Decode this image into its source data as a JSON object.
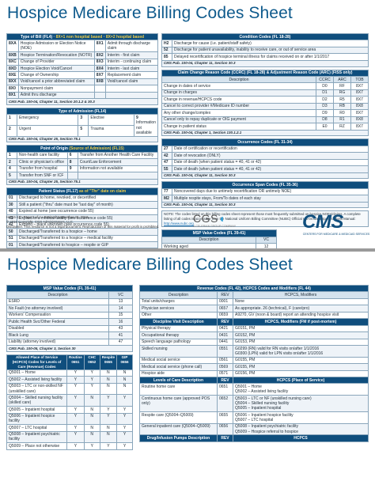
{
  "title": "Hospice Medicare Billing Codes Sheet",
  "p1": {
    "tob": {
      "head_a": "Type of Bill (FL4)",
      "head_b": "8X=1 non hospital based",
      "head_c": "8X=2 hospital based",
      "rows": [
        [
          "8XA",
          "Hospice Admission or Election Notice (NOE)",
          "8X1",
          "Admit through discharge claim"
        ],
        [
          "8XB",
          "Hospice Termination/Revocation (NOTR)",
          "8X2",
          "Interim - first claim"
        ],
        [
          "8XC",
          "Change of Provider",
          "8X3",
          "Interim - continuing claim"
        ],
        [
          "8XD",
          "Hospice Election Void/Cancel",
          "8X4",
          "Interim - last claim"
        ],
        [
          "8XE",
          "Change of Ownership",
          "8X7",
          "Replacement claim"
        ],
        [
          "8XX",
          "Void/cancel a prior abbreviated claim",
          "8X8",
          "Void/cancel claim"
        ],
        [
          "8X0",
          "Nonpayment claim",
          "",
          ""
        ],
        [
          "8X1",
          "Admit thru discharge",
          "",
          ""
        ]
      ],
      "ref": "CMS Pub. 100-04, Chapter 11, Section 20.1.2 & 30.3"
    },
    "toa": {
      "head": "Type of Admission (FL14)",
      "rows": [
        [
          "1",
          "Emergency",
          "3",
          "Elective"
        ],
        [
          "2",
          "Urgent",
          "5",
          "Trauma"
        ]
      ],
      "extra": [
        "9",
        "Information not available"
      ],
      "ref": "CMS Pub. 100-04, Chapter 25, Section 75.1"
    },
    "poo": {
      "head": "Point of Origin",
      "head_b": "(Source of Admission) (FL15)",
      "rows": [
        [
          "1",
          "Non-health care facility",
          "6",
          "Transfer from Another Health Care Facility"
        ],
        [
          "2",
          "Clinic or physician's office",
          "8",
          "Court/Law Enforcement"
        ],
        [
          "4",
          "Transfer from hospital",
          "9",
          "Information not available"
        ],
        [
          "5",
          "Transfer from SNF or ICF",
          "",
          ""
        ]
      ],
      "ref": "CMS Pub. 100-04, Chapter 25, Section 75.1"
    },
    "ps": {
      "head": "Patient Status (FL17)",
      "head_b": "as of \"Thr\" date on claim",
      "rows": [
        [
          "01",
          "Discharged to home, revoked, or decertified"
        ],
        [
          "30",
          "Still a patient (\"thru\" date must be \"last day\" of month)"
        ],
        [
          "40",
          "Expired at home (see occurrence code 55)"
        ],
        [
          "41",
          "Expired in a medical facility (see occurrence code 55)"
        ],
        [
          "42",
          "Expired – place unknown (see occurrence code 55)"
        ],
        [
          "50",
          "Discharged/Transferred to a hospice – home"
        ],
        [
          "51",
          "Discharged/Transferred to a hospice – medical facility"
        ],
        [
          "01",
          "Discharged/Transferred to hospice – respite or GIP"
        ]
      ],
      "ref": "CMS Pub. 100-04, Chapter 11, Section 30.3"
    },
    "website": "Website Reference -",
    "website_a": "CMS Pub. 100-04:",
    "website_link": "http://www.cms.gov/Regulations-and-Guidance/Guidance/Manuals/Internet-Only-Manuals-IOMs.html",
    "cond": {
      "head": "Condition Codes (FL 18-28)",
      "rows": [
        [
          "H2",
          "Discharge for cause (i.e. patient/staff safety)"
        ],
        [
          "52",
          "Discharge for patient unavailability, inability to receive care, or out of service area"
        ],
        [
          "85",
          "Delayed recertification of hospice terminal illness for claims received on or after 1/1/2017"
        ]
      ],
      "ref": "CMS Pub. 100-04, Chapter 11, Section 30.3"
    },
    "ccr": {
      "head": "Claim Change Reason Code (CCRC) (FL 18-28) & Adjustment Reason Code (ARC) (FISS only)",
      "cols": [
        "Description",
        "CCRC",
        "ARC",
        "TOB"
      ],
      "rows": [
        [
          "Change in dates of service",
          "D0",
          "RF",
          "8X7"
        ],
        [
          "Change in charges",
          "D1",
          "RG",
          "8X7"
        ],
        [
          "Change in revenue/HCPCS code",
          "D2",
          "R5",
          "8X7"
        ],
        [
          "Cancel to correct provider #/Medicare ID number",
          "D3",
          "RB",
          "8X8"
        ],
        [
          "Any other change/complex",
          "D9",
          "R0",
          "8X7"
        ],
        [
          "Cancel only to repay duplicate or OIG payment",
          "D8",
          "R1",
          "8X8"
        ],
        [
          "Change in patient status",
          "E0",
          "RZ",
          "8X7"
        ]
      ],
      "ref": "CMS Pub. 100-04, Chapter 1, Section 130.1.2.1"
    },
    "occ": {
      "head": "Occurrence Codes (FL 31-34)",
      "rows": [
        [
          "27",
          "Date of certification or recertification"
        ],
        [
          "42",
          "Date of revocation (ONLY)"
        ],
        [
          "47",
          "Date of death (when patient status = 40, 41 or 42)"
        ],
        [
          "55",
          "Date of death (when patient status = 40, 41 or 42)"
        ]
      ],
      "ref": "CMS Pub. 100-04, Chapter 11, Section 30.3"
    },
    "occspan": {
      "head": "Occurrence Span Codes (FL 35-36)",
      "rows": [
        [
          "77",
          "Noncovered days due to untimely recertification OR untimely NOE)"
        ],
        [
          "M2",
          "Multiple respite stays, From/To dates of each stay"
        ]
      ],
      "ref": "CMS Pub. 100-04, Chapter 11, Section 30.3"
    },
    "note": "NOTE: The codes listed on this billing codes sheet represent those most frequently submitted on hospice NOEs/claims. A complete listing of all codes is accessible from the National Uniform Billing Committee (NUBC) Official UB-04 Data Specifications Manual:",
    "note_link": "http://www.nubc.org",
    "msp_small": {
      "head": "MSP Value Codes (FL 39-41)",
      "cols": [
        "Description",
        "VC"
      ],
      "rows": [
        [
          "Working aged",
          "12"
        ]
      ]
    },
    "footer": [
      "H-016-13 • Page 1 of 4 • Revised September 28, 2018.",
      "© 2016 Copyright, CGS Administrators, LLC.",
      "Disclaimer: This resource is not a legal document. Reproduction of this material for profit is prohibited."
    ],
    "cgs_logo": "CGS",
    "cgs_sub": "A CELERIAN GROUP COMPANY",
    "cms_logo": "CMS",
    "cms_sub": "CENTERS FOR MEDICARE & MEDICAID SERVICES"
  },
  "p2": {
    "msp": {
      "head": "MSP Value Codes (FL 39-41)",
      "cols": [
        "Description",
        "VC"
      ],
      "rows": [
        [
          "ESRD",
          "13"
        ],
        [
          "No Fault (no attorney involved)",
          "14"
        ],
        [
          "Workers' Compensation",
          "15"
        ],
        [
          "Public Health Svc/Other Federal",
          "16"
        ],
        [
          "Disabled",
          "43"
        ],
        [
          "Black Lung",
          "41"
        ],
        [
          "Liability (attorney involved)",
          "47"
        ]
      ],
      "ref": "CMS Pub. 100-05, Chapter 3, Section 30"
    },
    "pos": {
      "head": "Allowed Place of Service (HCPCS) Codes for Levels of Care (Revenue) Codes",
      "cols": [
        "Routine 0651",
        "CHC 0652",
        "Respite 0655",
        "GIP 0656"
      ],
      "rows": [
        [
          "Q5001 – Home",
          "Y",
          "Y",
          "N",
          "N"
        ],
        [
          "Q5002 – Assisted living facility",
          "Y",
          "Y",
          "N",
          "N"
        ],
        [
          "Q5003 – LTC or non-skilled NF (unskilled care)",
          "Y",
          "Y",
          "N",
          "N"
        ],
        [
          "Q5004 – Skilled nursing facility (skilled care)",
          "Y",
          "N",
          "Y",
          "Y"
        ],
        [
          "Q5005 – Inpatient hospital",
          "Y",
          "N",
          "Y",
          "Y"
        ],
        [
          "Q5006 – Inpatient hospice facility",
          "Y",
          "N",
          "Y",
          "Y"
        ],
        [
          "Q5007 – LTC hospital",
          "Y",
          "N",
          "N",
          "Y"
        ],
        [
          "Q5008 – Inpatient psychiatric facility",
          "Y",
          "N",
          "N",
          "Y"
        ],
        [
          "Q5009 – Place not otherwise",
          "Y",
          "Y",
          "Y",
          "Y"
        ]
      ]
    },
    "rev": {
      "head": "Revenue Codes (FL 42), HCPCS Codes and Modifiers (FL 44)",
      "cols": [
        "Description",
        "REV",
        "HCPCS, Modifiers"
      ],
      "rows": [
        [
          "Total units/charges",
          "0001",
          "None"
        ],
        [
          "Physician services",
          "0657",
          "As appropriate. 26 (technical), F (care/pro)"
        ],
        [
          "Other",
          "0659",
          "A9270, GV (noon & board) report an attending hospice visit"
        ]
      ],
      "dvd_head": "Discipline Visit Description",
      "dvd_cols": [
        "REV",
        "HCPCS, Modifiers (FM if post-mortem)"
      ],
      "dvd": [
        [
          "Physical therapy",
          "0421",
          "G0151, PM"
        ],
        [
          "Occupational therapy",
          "0431",
          "G0152, PM"
        ],
        [
          "Speech language pathology",
          "0441",
          "G0153, PM"
        ],
        [
          "Skilled nursing",
          "0551",
          "G0299 (RN) valid for RN visits on/after 1/1/2016\nG0300 (LPN) valid for LPN visits on/after 1/1/2016"
        ],
        [
          "Medical social service",
          "0561",
          "G0155, PM"
        ],
        [
          "Medical social service (phone call)",
          "0569",
          "G0155, PM"
        ],
        [
          "Hospice aide",
          "0571",
          "G0156, PM"
        ]
      ],
      "loc_head": "Levels of Care Description",
      "loc_cols": [
        "REV",
        "HCPCS (Place of Service)"
      ],
      "loc": [
        [
          "Routine home care",
          "0651",
          "Q5001 – Home\nQ5002 – Assisted living facility"
        ],
        [
          "Continuous home care (approved POS only)",
          "0652",
          "Q5003 – LTC or NF (unskilled nursing care)\nQ5004 – Skilled nursing facility\nQ5005 – Inpatient hospital"
        ],
        [
          "Respite care (Q5004–Q5009)",
          "0655",
          "Q5006 – Inpatient hospice facility\nQ5007 – LTC hospital"
        ],
        [
          "General inpatient care (Q5004–Q5009)",
          "0656",
          "Q5008 – Inpatient psychiatric facility\nQ5009 – Hospice referral to hospice"
        ]
      ],
      "drug_head": "Drug/Infusion Pumps Description",
      "drug_cols": [
        "REV",
        "HCPCS"
      ]
    }
  }
}
